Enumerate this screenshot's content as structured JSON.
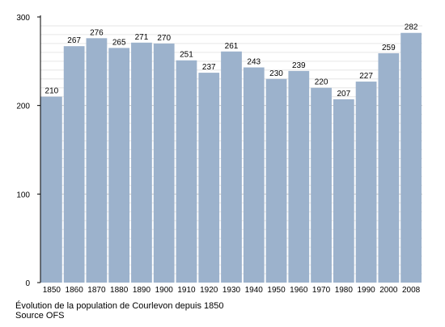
{
  "chart_data": {
    "type": "bar",
    "categories": [
      "1850",
      "1860",
      "1870",
      "1880",
      "1890",
      "1900",
      "1910",
      "1920",
      "1930",
      "1940",
      "1950",
      "1960",
      "1970",
      "1980",
      "1990",
      "2000",
      "2008"
    ],
    "values": [
      210,
      267,
      276,
      265,
      271,
      270,
      251,
      237,
      261,
      243,
      230,
      239,
      220,
      207,
      227,
      259,
      282
    ],
    "ylim": [
      0,
      300
    ],
    "yticks": [
      0,
      100,
      200,
      300
    ],
    "grid": true,
    "bar_color": "#9cb2cc",
    "caption": "Évolution de la population de Courlevon depuis 1850",
    "source": "Source OFS"
  }
}
